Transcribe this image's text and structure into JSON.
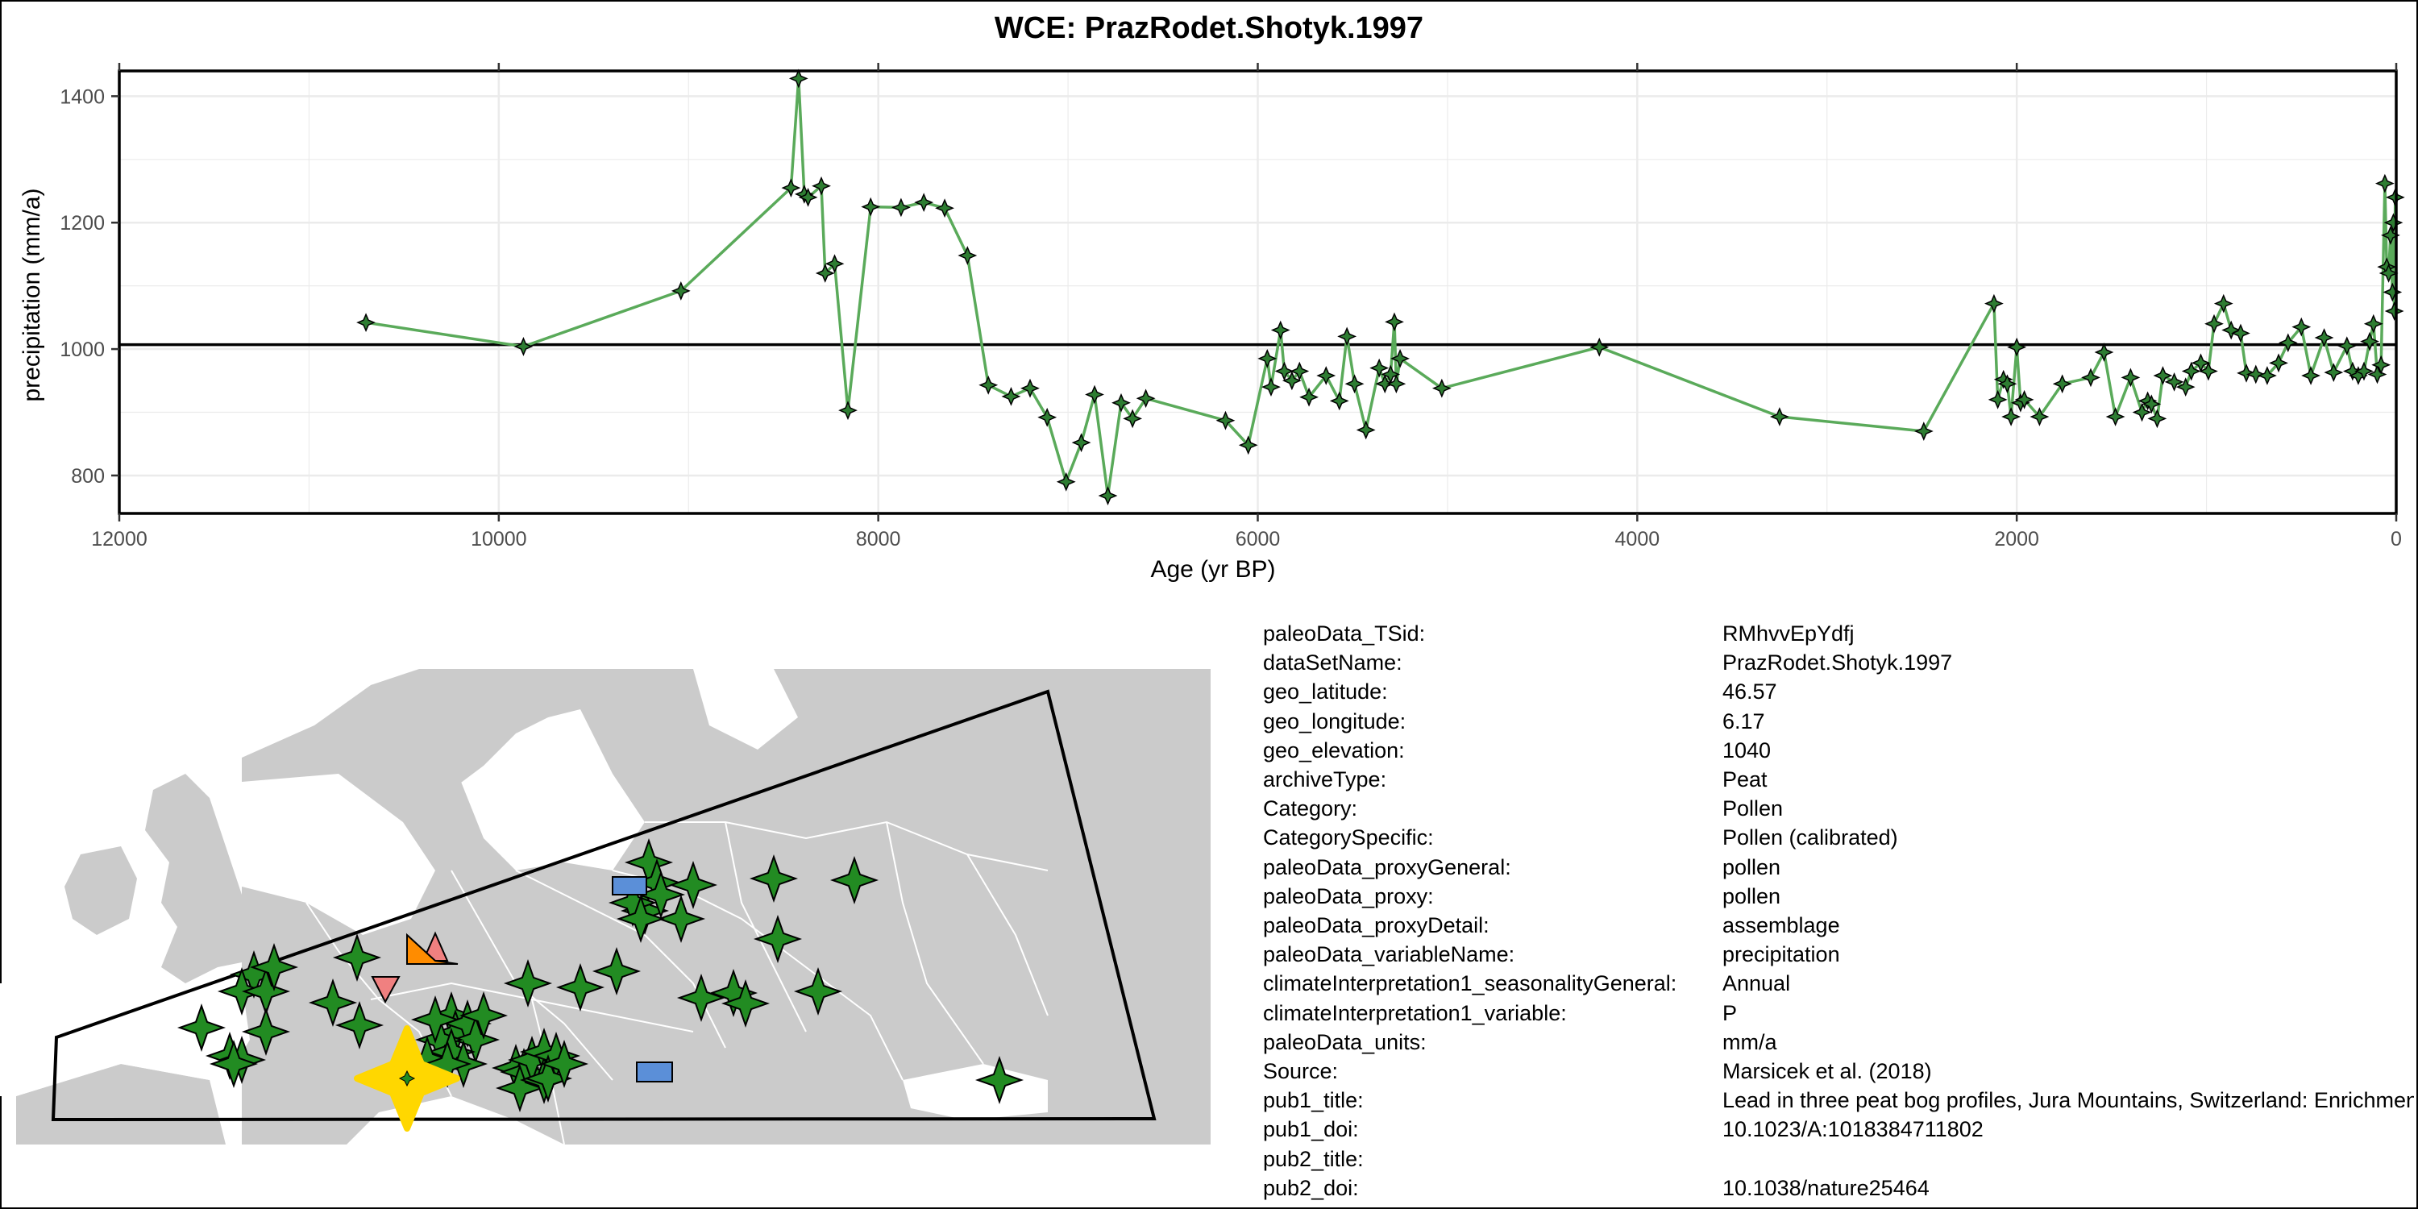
{
  "title": "WCE: PrazRodet.Shotyk.1997",
  "chart_data": {
    "type": "line",
    "xlabel": "Age (yr BP)",
    "ylabel": "precipitation (mm/a)",
    "x_reversed": true,
    "xlim": [
      12000,
      0
    ],
    "ylim": [
      740,
      1440
    ],
    "xticks": [
      12000,
      10000,
      8000,
      6000,
      4000,
      2000,
      0
    ],
    "yticks": [
      800,
      1000,
      1200,
      1400
    ],
    "mean_line": 1007,
    "grid": true,
    "series": [
      {
        "color": "#5aaa5a",
        "marker_color": "#2e7d32",
        "x": [
          10700,
          9870,
          9040,
          8460,
          8420,
          8390,
          8370,
          8300,
          8280,
          8230,
          8160,
          8040,
          7880,
          7760,
          7650,
          7530,
          7420,
          7300,
          7200,
          7110,
          7010,
          6930,
          6860,
          6790,
          6720,
          6660,
          6590,
          6170,
          6050,
          5950,
          5930,
          5880,
          5860,
          5820,
          5780,
          5730,
          5640,
          5570,
          5530,
          5490,
          5430,
          5360,
          5330,
          5300,
          5280,
          5270,
          5250,
          5030,
          4200,
          3250,
          2490,
          2120,
          2100,
          2070,
          2050,
          2030,
          2000,
          1980,
          1960,
          1880,
          1760,
          1610,
          1540,
          1480,
          1400,
          1340,
          1310,
          1290,
          1260,
          1230,
          1170,
          1110,
          1080,
          1030,
          990,
          960,
          910,
          870,
          820,
          790,
          740,
          680,
          620,
          570,
          500,
          450,
          380,
          330,
          260,
          230,
          200,
          170,
          140,
          120,
          100,
          80,
          60,
          50,
          40,
          30,
          20,
          15,
          10,
          5
        ],
        "y": [
          1042,
          1004,
          1092,
          1255,
          1428,
          1245,
          1240,
          1258,
          1120,
          1135,
          903,
          1225,
          1224,
          1232,
          1223,
          1148,
          943,
          925,
          938,
          892,
          790,
          852,
          928,
          768,
          915,
          890,
          922,
          887,
          848,
          985,
          940,
          1030,
          965,
          950,
          965,
          924,
          958,
          918,
          1020,
          945,
          872,
          970,
          945,
          960,
          1043,
          945,
          985,
          938,
          1003,
          893,
          870,
          1072,
          920,
          952,
          945,
          893,
          1003,
          915,
          920,
          893,
          945,
          955,
          995,
          893,
          955,
          900,
          918,
          913,
          890,
          958,
          948,
          940,
          965,
          978,
          965,
          1040,
          1072,
          1030,
          1025,
          962,
          960,
          958,
          978,
          1010,
          1035,
          958,
          1018,
          963,
          1005,
          965,
          958,
          965,
          1012,
          1040,
          960,
          975,
          1262,
          1130,
          1120,
          1180,
          1090,
          1200,
          1060,
          1240
        ]
      }
    ]
  },
  "map": {
    "land_color": "#cbcbcb",
    "border_color": "#ffffff",
    "this_site_color": "#ffd700",
    "other_site_color": "#228b22",
    "orange_triangle_color": "#ff8c00",
    "pink_triangle_color": "#f08080",
    "blue_rect_color": "#5b8fd8"
  },
  "metadata": [
    {
      "key": "paleoData_TSid:",
      "value": "RMhvvEpYdfj"
    },
    {
      "key": "dataSetName:",
      "value": "PrazRodet.Shotyk.1997"
    },
    {
      "key": "geo_latitude:",
      "value": "46.57"
    },
    {
      "key": "geo_longitude:",
      "value": "6.17"
    },
    {
      "key": "geo_elevation:",
      "value": "1040"
    },
    {
      "key": "archiveType:",
      "value": "Peat"
    },
    {
      "key": "Category:",
      "value": "Pollen"
    },
    {
      "key": "CategorySpecific:",
      "value": "Pollen (calibrated)"
    },
    {
      "key": "paleoData_proxyGeneral:",
      "value": "pollen"
    },
    {
      "key": "paleoData_proxy:",
      "value": "pollen"
    },
    {
      "key": "paleoData_proxyDetail:",
      "value": "assemblage"
    },
    {
      "key": "paleoData_variableName:",
      "value": "precipitation"
    },
    {
      "key": "climateInterpretation1_seasonalityGeneral:",
      "value": "Annual"
    },
    {
      "key": "climateInterpretation1_variable:",
      "value": "P"
    },
    {
      "key": "paleoData_units:",
      "value": "mm/a"
    },
    {
      "key": "Source:",
      "value": "Marsicek et al. (2018)"
    },
    {
      "key": "pub1_title:",
      "value": "Lead in three peat bog profiles, Jura Mountains, Switzerland: Enrichment factors, isotopic composition, and chronology of atmospheric deposition"
    },
    {
      "key": "pub1_doi:",
      "value": "10.1023/A:1018384711802"
    },
    {
      "key": "pub2_title:",
      "value": ""
    },
    {
      "key": "pub2_doi:",
      "value": "10.1038/nature25464"
    }
  ]
}
